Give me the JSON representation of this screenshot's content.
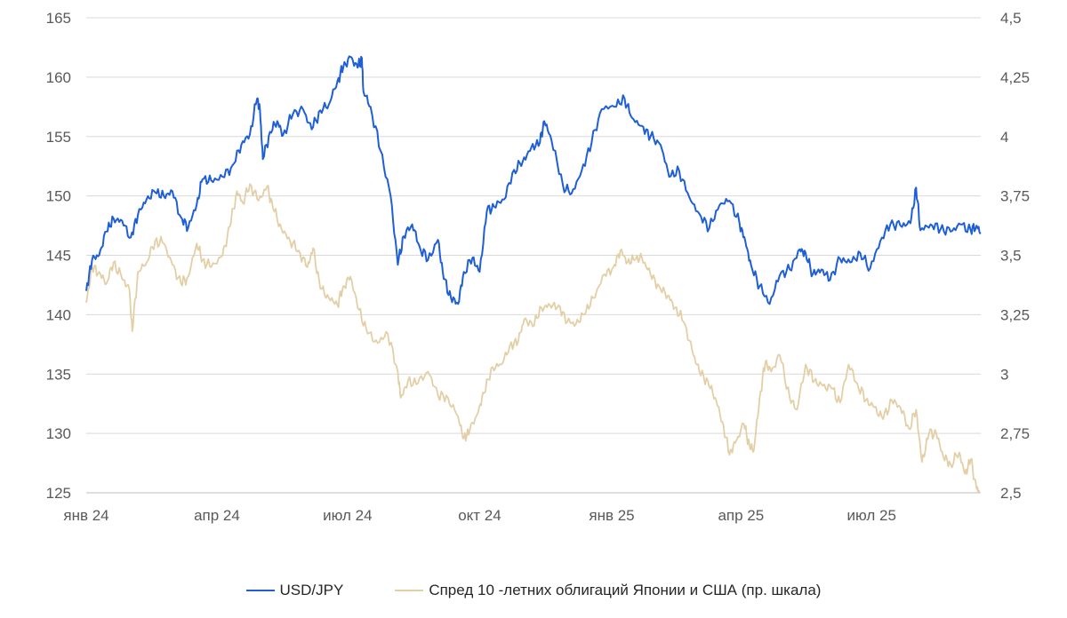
{
  "chart_data": {
    "type": "line",
    "title": "",
    "xlabel": "",
    "ylabel": "",
    "x_tick_labels": [
      "янв 24",
      "апр 24",
      "июл 24",
      "окт 24",
      "янв 25",
      "апр 25",
      "июл 25"
    ],
    "y_left": {
      "ticks": [
        "125",
        "130",
        "135",
        "140",
        "145",
        "150",
        "155",
        "160",
        "165"
      ],
      "ylim": [
        125,
        165
      ]
    },
    "y_right": {
      "ticks": [
        "2,5",
        "2,75",
        "3",
        "3,25",
        "3,5",
        "3,75",
        "4",
        "4,25",
        "4,5"
      ],
      "ylim": [
        2.5,
        4.5
      ]
    },
    "grid": true,
    "legend_position": "bottom",
    "series": [
      {
        "name": "USD/JPY",
        "axis": "left",
        "color": "#1f5fd6",
        "points": [
          [
            "2024-01-01",
            142.0
          ],
          [
            "2024-01-05",
            144.6
          ],
          [
            "2024-01-10",
            145.0
          ],
          [
            "2024-01-15",
            147.0
          ],
          [
            "2024-01-20",
            148.1
          ],
          [
            "2024-01-26",
            147.9
          ],
          [
            "2024-02-01",
            146.5
          ],
          [
            "2024-02-06",
            148.4
          ],
          [
            "2024-02-12",
            149.7
          ],
          [
            "2024-02-18",
            150.3
          ],
          [
            "2024-02-24",
            150.0
          ],
          [
            "2024-03-01",
            150.4
          ],
          [
            "2024-03-07",
            148.2
          ],
          [
            "2024-03-12",
            147.3
          ],
          [
            "2024-03-18",
            149.3
          ],
          [
            "2024-03-22",
            151.4
          ],
          [
            "2024-03-28",
            151.3
          ],
          [
            "2024-04-05",
            151.6
          ],
          [
            "2024-04-12",
            152.6
          ],
          [
            "2024-04-18",
            154.3
          ],
          [
            "2024-04-24",
            155.2
          ],
          [
            "2024-04-29",
            158.2
          ],
          [
            "2024-05-01",
            157.2
          ],
          [
            "2024-05-03",
            153.1
          ],
          [
            "2024-05-08",
            155.4
          ],
          [
            "2024-05-13",
            156.3
          ],
          [
            "2024-05-17",
            155.1
          ],
          [
            "2024-05-24",
            156.9
          ],
          [
            "2024-05-31",
            157.3
          ],
          [
            "2024-06-06",
            155.6
          ],
          [
            "2024-06-12",
            157.2
          ],
          [
            "2024-06-18",
            157.7
          ],
          [
            "2024-06-24",
            159.7
          ],
          [
            "2024-06-28",
            160.8
          ],
          [
            "2024-07-03",
            161.7
          ],
          [
            "2024-07-08",
            160.8
          ],
          [
            "2024-07-11",
            161.6
          ],
          [
            "2024-07-12",
            158.8
          ],
          [
            "2024-07-17",
            157.5
          ],
          [
            "2024-07-24",
            153.8
          ],
          [
            "2024-07-31",
            150.0
          ],
          [
            "2024-08-05",
            144.2
          ],
          [
            "2024-08-09",
            146.6
          ],
          [
            "2024-08-15",
            147.6
          ],
          [
            "2024-08-20",
            145.8
          ],
          [
            "2024-08-26",
            144.6
          ],
          [
            "2024-09-02",
            146.3
          ],
          [
            "2024-09-06",
            143.0
          ],
          [
            "2024-09-11",
            141.4
          ],
          [
            "2024-09-16",
            140.9
          ],
          [
            "2024-09-20",
            143.6
          ],
          [
            "2024-09-26",
            144.8
          ],
          [
            "2024-10-01",
            143.6
          ],
          [
            "2024-10-06",
            148.7
          ],
          [
            "2024-10-11",
            149.1
          ],
          [
            "2024-10-18",
            149.7
          ],
          [
            "2024-10-25",
            152.2
          ],
          [
            "2024-10-31",
            152.9
          ],
          [
            "2024-11-06",
            154.1
          ],
          [
            "2024-11-12",
            154.5
          ],
          [
            "2024-11-15",
            156.3
          ],
          [
            "2024-11-20",
            154.7
          ],
          [
            "2024-11-28",
            150.9
          ],
          [
            "2024-12-04",
            150.2
          ],
          [
            "2024-12-11",
            152.1
          ],
          [
            "2024-12-18",
            154.5
          ],
          [
            "2024-12-25",
            157.3
          ],
          [
            "2025-01-03",
            157.5
          ],
          [
            "2025-01-10",
            158.2
          ],
          [
            "2025-01-15",
            156.6
          ],
          [
            "2025-01-22",
            155.9
          ],
          [
            "2025-01-28",
            155.0
          ],
          [
            "2025-02-04",
            154.3
          ],
          [
            "2025-02-10",
            151.6
          ],
          [
            "2025-02-17",
            152.1
          ],
          [
            "2025-02-24",
            149.9
          ],
          [
            "2025-03-03",
            148.5
          ],
          [
            "2025-03-10",
            147.3
          ],
          [
            "2025-03-17",
            149.2
          ],
          [
            "2025-03-24",
            149.6
          ],
          [
            "2025-03-31",
            147.7
          ],
          [
            "2025-04-04",
            146.2
          ],
          [
            "2025-04-08",
            144.2
          ],
          [
            "2025-04-14",
            142.4
          ],
          [
            "2025-04-21",
            140.9
          ],
          [
            "2025-04-28",
            143.3
          ],
          [
            "2025-05-05",
            143.8
          ],
          [
            "2025-05-12",
            145.5
          ],
          [
            "2025-05-16",
            145.2
          ],
          [
            "2025-05-21",
            143.4
          ],
          [
            "2025-05-27",
            143.8
          ],
          [
            "2025-06-02",
            142.9
          ],
          [
            "2025-06-09",
            144.7
          ],
          [
            "2025-06-16",
            144.4
          ],
          [
            "2025-06-23",
            145.2
          ],
          [
            "2025-06-30",
            143.9
          ],
          [
            "2025-07-07",
            146.2
          ],
          [
            "2025-07-14",
            147.6
          ],
          [
            "2025-07-21",
            147.5
          ],
          [
            "2025-07-28",
            147.7
          ],
          [
            "2025-08-01",
            150.7
          ],
          [
            "2025-08-04",
            147.1
          ],
          [
            "2025-08-11",
            147.6
          ],
          [
            "2025-08-18",
            147.2
          ],
          [
            "2025-08-25",
            147.0
          ],
          [
            "2025-09-01",
            147.6
          ],
          [
            "2025-09-08",
            147.1
          ],
          [
            "2025-09-12",
            147.5
          ],
          [
            "2025-09-15",
            146.9
          ]
        ]
      },
      {
        "name": "Спред 10 -летних облигаций Японии и США (пр. шкала)",
        "axis": "right",
        "color": "#e3cfa6",
        "points": [
          [
            "2024-01-01",
            3.3
          ],
          [
            "2024-01-05",
            3.45
          ],
          [
            "2024-01-10",
            3.43
          ],
          [
            "2024-01-15",
            3.38
          ],
          [
            "2024-01-20",
            3.47
          ],
          [
            "2024-01-26",
            3.4
          ],
          [
            "2024-01-31",
            3.36
          ],
          [
            "2024-02-02",
            3.18
          ],
          [
            "2024-02-06",
            3.43
          ],
          [
            "2024-02-12",
            3.47
          ],
          [
            "2024-02-18",
            3.56
          ],
          [
            "2024-02-24",
            3.55
          ],
          [
            "2024-03-01",
            3.46
          ],
          [
            "2024-03-07",
            3.38
          ],
          [
            "2024-03-12",
            3.41
          ],
          [
            "2024-03-18",
            3.55
          ],
          [
            "2024-03-22",
            3.48
          ],
          [
            "2024-03-28",
            3.45
          ],
          [
            "2024-04-05",
            3.5
          ],
          [
            "2024-04-10",
            3.62
          ],
          [
            "2024-04-15",
            3.77
          ],
          [
            "2024-04-19",
            3.72
          ],
          [
            "2024-04-24",
            3.8
          ],
          [
            "2024-04-30",
            3.73
          ],
          [
            "2024-05-06",
            3.79
          ],
          [
            "2024-05-10",
            3.7
          ],
          [
            "2024-05-16",
            3.61
          ],
          [
            "2024-05-22",
            3.56
          ],
          [
            "2024-05-28",
            3.52
          ],
          [
            "2024-06-03",
            3.45
          ],
          [
            "2024-06-07",
            3.53
          ],
          [
            "2024-06-12",
            3.36
          ],
          [
            "2024-06-18",
            3.32
          ],
          [
            "2024-06-24",
            3.29
          ],
          [
            "2024-06-28",
            3.37
          ],
          [
            "2024-07-03",
            3.41
          ],
          [
            "2024-07-09",
            3.27
          ],
          [
            "2024-07-15",
            3.17
          ],
          [
            "2024-07-22",
            3.13
          ],
          [
            "2024-07-29",
            3.17
          ],
          [
            "2024-08-05",
            3.01
          ],
          [
            "2024-08-07",
            2.9
          ],
          [
            "2024-08-12",
            2.97
          ],
          [
            "2024-08-19",
            2.96
          ],
          [
            "2024-08-26",
            3.01
          ],
          [
            "2024-09-02",
            2.91
          ],
          [
            "2024-09-09",
            2.9
          ],
          [
            "2024-09-16",
            2.82
          ],
          [
            "2024-09-20",
            2.73
          ],
          [
            "2024-09-24",
            2.76
          ],
          [
            "2024-09-30",
            2.84
          ],
          [
            "2024-10-04",
            2.92
          ],
          [
            "2024-10-10",
            3.03
          ],
          [
            "2024-10-16",
            3.04
          ],
          [
            "2024-10-22",
            3.12
          ],
          [
            "2024-10-28",
            3.14
          ],
          [
            "2024-11-01",
            3.23
          ],
          [
            "2024-11-07",
            3.2
          ],
          [
            "2024-11-13",
            3.28
          ],
          [
            "2024-11-19",
            3.29
          ],
          [
            "2024-11-25",
            3.29
          ],
          [
            "2024-12-01",
            3.22
          ],
          [
            "2024-12-07",
            3.21
          ],
          [
            "2024-12-13",
            3.25
          ],
          [
            "2024-12-19",
            3.32
          ],
          [
            "2024-12-27",
            3.42
          ],
          [
            "2025-01-02",
            3.45
          ],
          [
            "2025-01-07",
            3.52
          ],
          [
            "2025-01-12",
            3.47
          ],
          [
            "2025-01-17",
            3.48
          ],
          [
            "2025-01-22",
            3.49
          ],
          [
            "2025-01-28",
            3.42
          ],
          [
            "2025-02-03",
            3.37
          ],
          [
            "2025-02-09",
            3.33
          ],
          [
            "2025-02-14",
            3.28
          ],
          [
            "2025-02-20",
            3.22
          ],
          [
            "2025-02-26",
            3.1
          ],
          [
            "2025-03-03",
            3.01
          ],
          [
            "2025-03-09",
            2.97
          ],
          [
            "2025-03-14",
            2.9
          ],
          [
            "2025-03-19",
            2.8
          ],
          [
            "2025-03-24",
            2.66
          ],
          [
            "2025-03-28",
            2.71
          ],
          [
            "2025-04-03",
            2.79
          ],
          [
            "2025-04-07",
            2.7
          ],
          [
            "2025-04-10",
            2.68
          ],
          [
            "2025-04-14",
            2.9
          ],
          [
            "2025-04-18",
            3.05
          ],
          [
            "2025-04-22",
            3.01
          ],
          [
            "2025-04-28",
            3.08
          ],
          [
            "2025-05-05",
            2.9
          ],
          [
            "2025-05-10",
            2.85
          ],
          [
            "2025-05-16",
            3.04
          ],
          [
            "2025-05-22",
            2.97
          ],
          [
            "2025-05-28",
            2.95
          ],
          [
            "2025-06-03",
            2.94
          ],
          [
            "2025-06-09",
            2.88
          ],
          [
            "2025-06-15",
            3.04
          ],
          [
            "2025-06-21",
            2.96
          ],
          [
            "2025-06-27",
            2.89
          ],
          [
            "2025-07-03",
            2.86
          ],
          [
            "2025-07-09",
            2.81
          ],
          [
            "2025-07-15",
            2.89
          ],
          [
            "2025-07-21",
            2.86
          ],
          [
            "2025-07-27",
            2.77
          ],
          [
            "2025-08-01",
            2.85
          ],
          [
            "2025-08-05",
            2.63
          ],
          [
            "2025-08-10",
            2.75
          ],
          [
            "2025-08-15",
            2.75
          ],
          [
            "2025-08-20",
            2.65
          ],
          [
            "2025-08-25",
            2.62
          ],
          [
            "2025-08-31",
            2.67
          ],
          [
            "2025-09-04",
            2.58
          ],
          [
            "2025-09-08",
            2.64
          ],
          [
            "2025-09-12",
            2.52
          ],
          [
            "2025-09-14",
            2.5
          ]
        ]
      }
    ]
  }
}
